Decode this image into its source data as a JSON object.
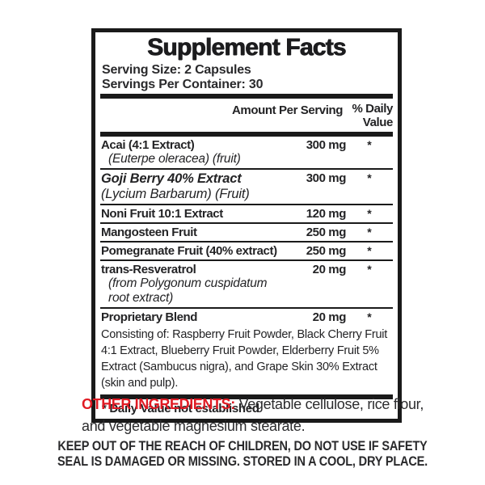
{
  "label": {
    "title": "Supplement Facts",
    "serving_size": "Serving Size: 2 Capsules",
    "servings_per_container": "Servings Per Container: 30",
    "columns": {
      "amount_header": "Amount Per Serving",
      "daily_value_header_line1": "% Daily",
      "daily_value_header_line2": "Value"
    },
    "rows": [
      {
        "name": "Acai (4:1 Extract)",
        "name_italic": false,
        "sub": "(Euterpe oleracea) (fruit)",
        "amount": "300 mg",
        "daily_value": "*"
      },
      {
        "name": "Goji Berry 40% Extract",
        "name_italic": true,
        "sub": "(Lycium Barbarum) (Fruit)",
        "amount": "300 mg",
        "daily_value": "*"
      },
      {
        "name": "Noni Fruit 10:1 Extract",
        "name_italic": false,
        "amount": "120 mg",
        "daily_value": "*"
      },
      {
        "name": "Mangosteen Fruit",
        "name_italic": false,
        "amount": "250 mg",
        "daily_value": "*"
      },
      {
        "name": "Pomegranate Fruit (40% extract)",
        "name_italic": false,
        "amount": "250 mg",
        "daily_value": "*"
      },
      {
        "name": "trans-Resveratrol",
        "name_italic": false,
        "sub": "(from Polygonum cuspidatum root extract)",
        "amount": "20 mg",
        "daily_value": "*"
      },
      {
        "name": "Proprietary Blend",
        "name_italic": false,
        "amount": "20 mg",
        "daily_value": "*",
        "description": "Consisting of: Raspberry Fruit Powder, Black Cherry Fruit 4:1 Extract, Blueberry Fruit Powder, Elderberry Fruit 5% Extract (Sambucus nigra), and Grape Skin 30% Extract (skin and pulp)."
      }
    ],
    "footnote": "* Daily Value not established"
  },
  "other_ingredients": {
    "heading": "OTHER INGREDIENTS:",
    "text": " Vegetable cellulose, rice flour, and vegetable magnesium stearate."
  },
  "warning": {
    "lines": [
      "KEEP OUT OF THE REACH OF CHILDREN, DO NOT USE IF SAFETY",
      "SEAL IS DAMAGED OR MISSING. STORED IN A COOL, DRY PLACE."
    ]
  },
  "colors": {
    "ink": "#1a1a1a",
    "accent_red": "#e01b24"
  }
}
